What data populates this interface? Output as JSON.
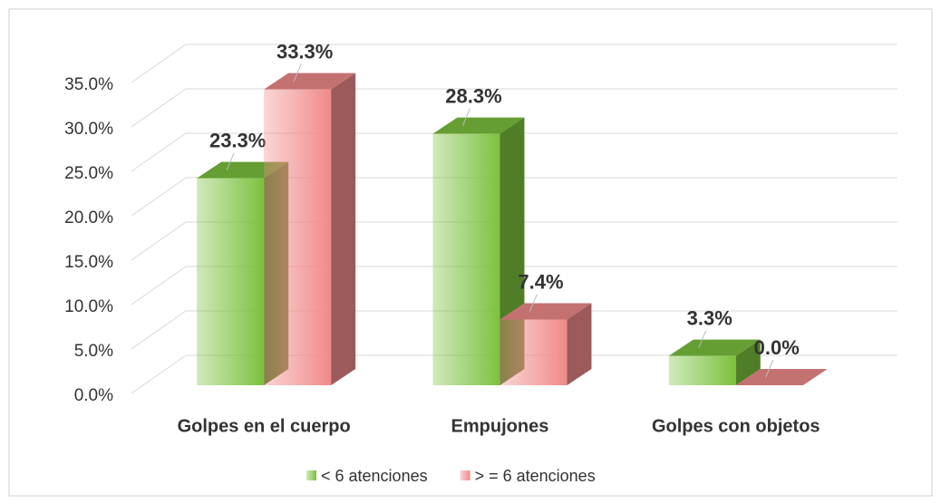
{
  "chart_data": {
    "type": "bar3d",
    "categories": [
      "Golpes en el cuerpo",
      "Empujones",
      "Golpes con objetos"
    ],
    "series": [
      {
        "name": "< 6 atenciones",
        "color": "#7cc13e",
        "values": [
          23.3,
          28.3,
          3.3
        ],
        "value_labels": [
          "23.3%",
          "28.3%",
          "3.3%"
        ]
      },
      {
        "name": "> = 6 atenciones",
        "color": "#f08a8a",
        "values": [
          33.3,
          7.4,
          0.0
        ],
        "value_labels": [
          "33.3%",
          "7.4%",
          "0.0%"
        ]
      }
    ],
    "ylim": [
      0,
      35
    ],
    "yticks": [
      {
        "value": 0,
        "label": "0.0%"
      },
      {
        "value": 5,
        "label": "5.0%"
      },
      {
        "value": 10,
        "label": "10.0%"
      },
      {
        "value": 15,
        "label": "15.0%"
      },
      {
        "value": 20,
        "label": "20.0%"
      },
      {
        "value": 25,
        "label": "25.0%"
      },
      {
        "value": 30,
        "label": "30.0%"
      },
      {
        "value": 35,
        "label": "35.0%"
      }
    ],
    "grid": true,
    "legend": "bottom"
  }
}
